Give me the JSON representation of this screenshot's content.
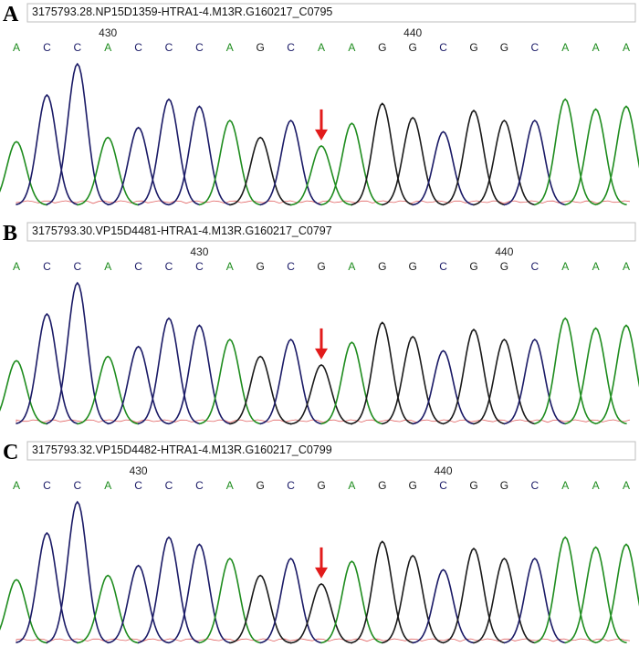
{
  "colors": {
    "A": "#1e8c1e",
    "C": "#1a1a66",
    "G": "#1a1a1a",
    "T": "#d42020",
    "arrow": "#e21b1b",
    "frame": "#bdbdbd"
  },
  "chart_data": [
    {
      "type": "line",
      "panel_label": "A",
      "title": "3175793.28.NP15D1359-HTRA1-4.M13R.G160217_C0795",
      "bases": [
        "A",
        "C",
        "C",
        "A",
        "C",
        "C",
        "C",
        "A",
        "G",
        "C",
        "A",
        "A",
        "G",
        "G",
        "C",
        "G",
        "G",
        "C",
        "A",
        "A",
        "A"
      ],
      "position_labels": [
        {
          "index": 3,
          "text": "430"
        },
        {
          "index": 13,
          "text": "440"
        }
      ],
      "peak_heights": [
        0.45,
        0.78,
        1.0,
        0.48,
        0.55,
        0.75,
        0.7,
        0.6,
        0.48,
        0.6,
        0.42,
        0.58,
        0.72,
        0.62,
        0.52,
        0.67,
        0.6,
        0.6,
        0.75,
        0.68,
        0.7
      ],
      "arrow_index": 10
    },
    {
      "type": "line",
      "panel_label": "B",
      "title": "3175793.30.VP15D4481-HTRA1-4.M13R.G160217_C0797",
      "bases": [
        "A",
        "C",
        "C",
        "A",
        "C",
        "C",
        "C",
        "A",
        "G",
        "C",
        "G",
        "A",
        "G",
        "G",
        "C",
        "G",
        "G",
        "C",
        "A",
        "A",
        "A"
      ],
      "position_labels": [
        {
          "index": 6,
          "text": "430"
        },
        {
          "index": 16,
          "text": "440"
        }
      ],
      "peak_heights": [
        0.45,
        0.78,
        1.0,
        0.48,
        0.55,
        0.75,
        0.7,
        0.6,
        0.48,
        0.6,
        0.42,
        0.58,
        0.72,
        0.62,
        0.52,
        0.67,
        0.6,
        0.6,
        0.75,
        0.68,
        0.7
      ],
      "arrow_index": 10
    },
    {
      "type": "line",
      "panel_label": "C",
      "title": "3175793.32.VP15D4482-HTRA1-4.M13R.G160217_C0799",
      "bases": [
        "A",
        "C",
        "C",
        "A",
        "C",
        "C",
        "C",
        "A",
        "G",
        "C",
        "G",
        "A",
        "G",
        "G",
        "C",
        "G",
        "G",
        "C",
        "A",
        "A",
        "A"
      ],
      "position_labels": [
        {
          "index": 4,
          "text": "430"
        },
        {
          "index": 14,
          "text": "440"
        }
      ],
      "peak_heights": [
        0.45,
        0.78,
        1.0,
        0.48,
        0.55,
        0.75,
        0.7,
        0.6,
        0.48,
        0.6,
        0.42,
        0.58,
        0.72,
        0.62,
        0.52,
        0.67,
        0.6,
        0.6,
        0.75,
        0.68,
        0.7
      ],
      "arrow_index": 10
    }
  ]
}
